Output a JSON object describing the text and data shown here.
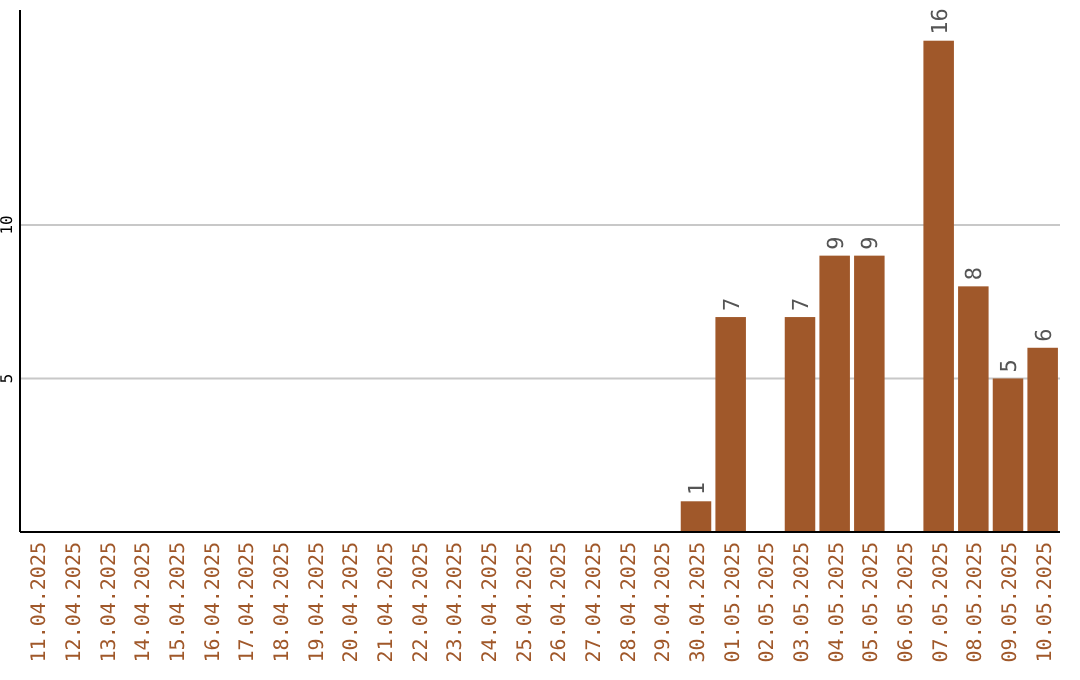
{
  "chart_data": {
    "type": "bar",
    "categories": [
      "11.04.2025",
      "12.04.2025",
      "13.04.2025",
      "14.04.2025",
      "15.04.2025",
      "16.04.2025",
      "17.04.2025",
      "18.04.2025",
      "19.04.2025",
      "20.04.2025",
      "21.04.2025",
      "22.04.2025",
      "23.04.2025",
      "24.04.2025",
      "25.04.2025",
      "26.04.2025",
      "27.04.2025",
      "28.04.2025",
      "29.04.2025",
      "30.04.2025",
      "01.05.2025",
      "02.05.2025",
      "03.05.2025",
      "04.05.2025",
      "05.05.2025",
      "06.05.2025",
      "07.05.2025",
      "08.05.2025",
      "09.05.2025",
      "10.05.2025"
    ],
    "values": [
      0,
      0,
      0,
      0,
      0,
      0,
      0,
      0,
      0,
      0,
      0,
      0,
      0,
      0,
      0,
      0,
      0,
      0,
      0,
      1,
      7,
      0,
      7,
      9,
      9,
      0,
      16,
      8,
      5,
      6
    ],
    "value_labels": [
      null,
      null,
      null,
      null,
      null,
      null,
      null,
      null,
      null,
      null,
      null,
      null,
      null,
      null,
      null,
      null,
      null,
      null,
      null,
      "1",
      "7",
      null,
      "7",
      "9",
      "9",
      null,
      "16",
      "8",
      "5",
      "6"
    ],
    "color": "#a0582a",
    "ylim": [
      0,
      17
    ],
    "yticks": [
      5,
      10
    ],
    "grid": "y"
  }
}
